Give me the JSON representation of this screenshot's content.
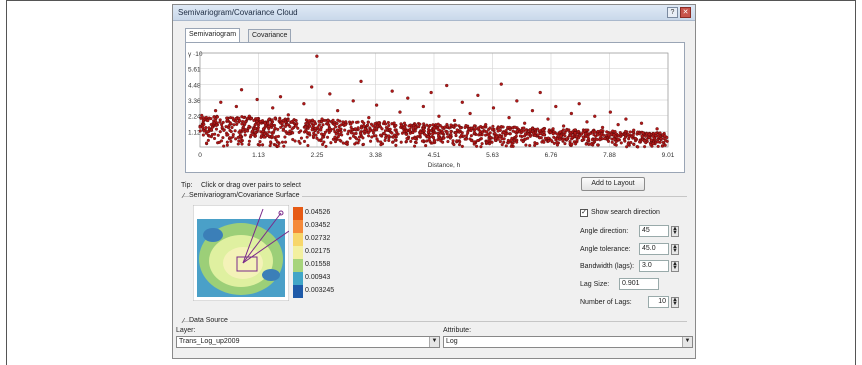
{
  "window": {
    "title": "Semivariogram/Covariance Cloud",
    "help_label": "?",
    "close_label": "✕"
  },
  "tabs": [
    {
      "label": "Semivariogram",
      "active": true
    },
    {
      "label": "Covariance",
      "active": false
    }
  ],
  "chart_data": {
    "type": "scatter",
    "title": "",
    "xlabel": "Distance, h",
    "ylabel": "γ ·10",
    "x_ticks": [
      "0",
      "1.13",
      "2.25",
      "3.38",
      "4.51",
      "5.63",
      "6.76",
      "7.88",
      "9.01"
    ],
    "y_ticks": [
      "γ ·10",
      "5.61",
      "4.48",
      "3.36",
      "2.24",
      "1.12"
    ],
    "xlim": [
      0,
      9.01
    ],
    "ylim": [
      0,
      6.73
    ],
    "grid": true,
    "marker_color": "#b01818",
    "series": [
      {
        "values_description": "dense point cloud",
        "points": [
          [
            0.15,
            1.9
          ],
          [
            0.3,
            2.6
          ],
          [
            0.4,
            3.2
          ],
          [
            0.55,
            1.4
          ],
          [
            0.7,
            2.9
          ],
          [
            0.8,
            4.1
          ],
          [
            0.95,
            2.2
          ],
          [
            1.1,
            3.4
          ],
          [
            1.25,
            1.7
          ],
          [
            1.4,
            2.8
          ],
          [
            1.55,
            3.6
          ],
          [
            1.7,
            2.3
          ],
          [
            1.85,
            1.5
          ],
          [
            2.0,
            3.1
          ],
          [
            2.15,
            4.3
          ],
          [
            2.25,
            6.5
          ],
          [
            2.35,
            2.0
          ],
          [
            2.5,
            3.8
          ],
          [
            2.65,
            2.6
          ],
          [
            2.8,
            1.6
          ],
          [
            2.95,
            3.3
          ],
          [
            3.1,
            4.7
          ],
          [
            3.25,
            2.1
          ],
          [
            3.4,
            3.0
          ],
          [
            3.55,
            1.8
          ],
          [
            3.7,
            4.0
          ],
          [
            3.85,
            2.5
          ],
          [
            4.0,
            3.5
          ],
          [
            4.15,
            1.4
          ],
          [
            4.3,
            2.9
          ],
          [
            4.45,
            3.9
          ],
          [
            4.6,
            2.2
          ],
          [
            4.75,
            4.4
          ],
          [
            4.9,
            1.9
          ],
          [
            5.05,
            3.2
          ],
          [
            5.2,
            2.4
          ],
          [
            5.35,
            3.7
          ],
          [
            5.5,
            1.6
          ],
          [
            5.65,
            2.8
          ],
          [
            5.8,
            4.5
          ],
          [
            5.95,
            2.1
          ],
          [
            6.1,
            3.3
          ],
          [
            6.25,
            1.7
          ],
          [
            6.4,
            2.6
          ],
          [
            6.55,
            3.9
          ],
          [
            6.7,
            2.0
          ],
          [
            6.85,
            2.9
          ],
          [
            7.0,
            1.5
          ],
          [
            7.15,
            2.4
          ],
          [
            7.3,
            3.1
          ],
          [
            7.45,
            1.8
          ],
          [
            7.6,
            2.2
          ],
          [
            7.75,
            1.4
          ],
          [
            7.9,
            2.5
          ],
          [
            8.05,
            1.6
          ],
          [
            8.2,
            2.0
          ],
          [
            8.35,
            1.2
          ],
          [
            8.5,
            1.7
          ],
          [
            8.65,
            0.9
          ],
          [
            8.8,
            1.3
          ],
          [
            8.95,
            0.8
          ]
        ]
      }
    ]
  },
  "tip": {
    "prefix": "Tip:",
    "text": "Click or drag over pairs to select"
  },
  "add_to_layout_label": "Add to Layout",
  "surface": {
    "group_label": "Semivariogram/Covariance Surface",
    "legend": [
      "0.04526",
      "0.03452",
      "0.02732",
      "0.02175",
      "0.01558",
      "0.00943",
      "0.003245"
    ],
    "legend_colors": [
      "#e65a14",
      "#f58a3a",
      "#f7d66a",
      "#f3f0a0",
      "#a7d47c",
      "#41a6c8",
      "#1e5aa8"
    ]
  },
  "settings": {
    "show_search_label": "Show search direction",
    "show_search_checked": true,
    "angle_direction_label": "Angle direction:",
    "angle_direction_value": "45",
    "angle_tolerance_label": "Angle tolerance:",
    "angle_tolerance_value": "45.0",
    "bandwidth_label": "Bandwidth (lags):",
    "bandwidth_value": "3.0",
    "lag_size_label": "Lag Size:",
    "lag_size_value": "0.901",
    "num_lags_label": "Number of Lags:",
    "num_lags_value": "10"
  },
  "data_source": {
    "group_label": "Data Source",
    "layer_label": "Layer:",
    "layer_value": "Trans_Log_up2009",
    "attribute_label": "Attribute:",
    "attribute_value": "Log"
  }
}
